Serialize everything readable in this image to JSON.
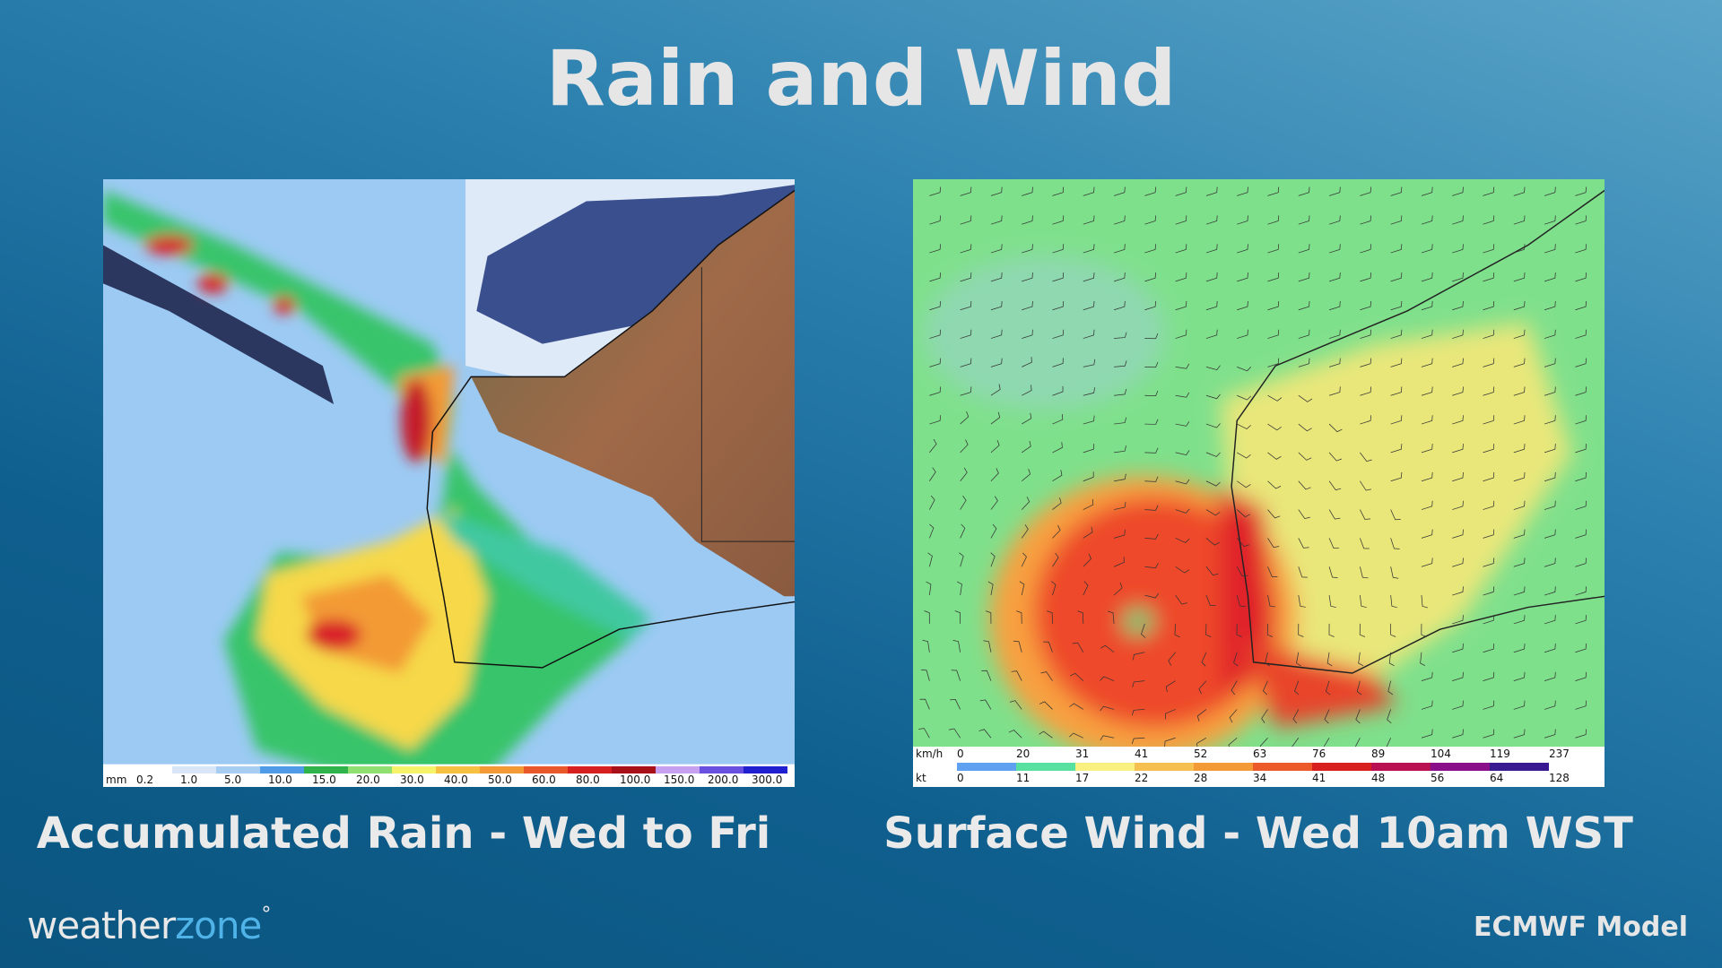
{
  "header": {
    "title": "Rain and Wind"
  },
  "panels": [
    {
      "caption": "Accumulated Rain - Wed to Fri",
      "legend": {
        "unit": "mm",
        "labels": [
          "0.2",
          "1.0",
          "5.0",
          "10.0",
          "15.0",
          "20.0",
          "30.0",
          "40.0",
          "50.0",
          "60.0",
          "80.0",
          "100.0",
          "150.0",
          "200.0",
          "300.0"
        ]
      }
    },
    {
      "caption": "Surface Wind - Wed 10am WST",
      "legend": {
        "rows": [
          {
            "unit": "km/h",
            "labels": [
              "0",
              "20",
              "31",
              "41",
              "52",
              "63",
              "76",
              "89",
              "104",
              "119",
              "237"
            ]
          },
          {
            "unit": "kt",
            "labels": [
              "0",
              "11",
              "17",
              "22",
              "28",
              "34",
              "41",
              "48",
              "56",
              "64",
              "128"
            ]
          }
        ]
      }
    }
  ],
  "footer": {
    "logo_left": "weather",
    "logo_right": "zone",
    "model": "ECMWF Model"
  }
}
